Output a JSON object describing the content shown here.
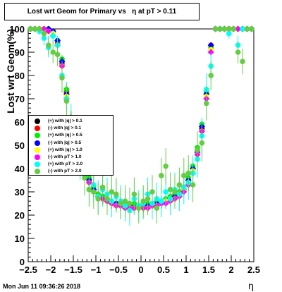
{
  "title": "Lost wrt Geom for Primary vs   η at pT > 0.11",
  "datestamp": "Mon Jun 11 09:36:26 2018",
  "chart_data": {
    "type": "scatter",
    "title": "Lost wrt Geom for Primary vs   η at pT > 0.11",
    "xlabel": "η",
    "ylabel": "Lost wrt Geom(%)",
    "xlim": [
      -2.5,
      2.5
    ],
    "ylim": [
      0,
      100
    ],
    "x_ticks": [
      "−2.5",
      "−2",
      "−1.5",
      "−1",
      "−0.5",
      "0",
      "0.5",
      "1",
      "1.5",
      "2",
      "2.5"
    ],
    "y_ticks": [
      "0",
      "10",
      "20",
      "30",
      "40",
      "50",
      "60",
      "70",
      "80",
      "90",
      "100"
    ],
    "grid": false,
    "legend_position": "left",
    "x": [
      -2.45,
      -2.35,
      -2.25,
      -2.15,
      -2.05,
      -1.95,
      -1.85,
      -1.75,
      -1.65,
      -1.55,
      -1.45,
      -1.35,
      -1.25,
      -1.15,
      -1.05,
      -0.95,
      -0.85,
      -0.75,
      -0.65,
      -0.55,
      -0.45,
      -0.35,
      -0.25,
      -0.15,
      -0.05,
      0.05,
      0.15,
      0.25,
      0.35,
      0.45,
      0.55,
      0.65,
      0.75,
      0.85,
      0.95,
      1.05,
      1.15,
      1.25,
      1.35,
      1.45,
      1.55,
      1.65,
      1.75,
      1.85,
      1.95,
      2.05,
      2.15,
      2.25,
      2.35,
      2.45
    ],
    "series": [
      {
        "name": "(+) with |q| > 0.1",
        "color": "#000000",
        "values": [
          100,
          100,
          100,
          100,
          100,
          99,
          95,
          86,
          73,
          62,
          54,
          47,
          40,
          35,
          31,
          28,
          27,
          26,
          25,
          25,
          24,
          24,
          24,
          24,
          24,
          24,
          24,
          24,
          25,
          25,
          26,
          27,
          28,
          29,
          31,
          35,
          40,
          48,
          57,
          72,
          92,
          100,
          100,
          100,
          100,
          100,
          100,
          100,
          100,
          100
        ]
      },
      {
        "name": "(-) with |q| > 0.1",
        "color": "#ff0000",
        "values": [
          100,
          100,
          100,
          100,
          100,
          99,
          94,
          85,
          73,
          61,
          53,
          46,
          39,
          34,
          30,
          28,
          27,
          26,
          25,
          24,
          24,
          24,
          23,
          23,
          23,
          23,
          24,
          24,
          25,
          25,
          26,
          27,
          28,
          29,
          31,
          34,
          39,
          47,
          58,
          73,
          93,
          100,
          100,
          100,
          100,
          100,
          100,
          100,
          100,
          100
        ]
      },
      {
        "name": "(+) with |q| > 0.5",
        "color": "#00ee00",
        "values": [
          100,
          100,
          100,
          100,
          100,
          98,
          95,
          87,
          74,
          62,
          54,
          47,
          41,
          36,
          32,
          29,
          28,
          27,
          26,
          25,
          25,
          25,
          24,
          25,
          24,
          24,
          25,
          25,
          26,
          26,
          27,
          28,
          29,
          30,
          32,
          36,
          41,
          49,
          59,
          73,
          92,
          100,
          100,
          100,
          100,
          100,
          100,
          100,
          100,
          100
        ]
      },
      {
        "name": "(-) with |q| > 0.5",
        "color": "#0000ff",
        "values": [
          100,
          100,
          100,
          100,
          100,
          99,
          95,
          86,
          72,
          61,
          53,
          46,
          40,
          35,
          31,
          28,
          27,
          26,
          25,
          25,
          24,
          24,
          24,
          23,
          23,
          24,
          24,
          24,
          25,
          25,
          26,
          27,
          28,
          29,
          31,
          35,
          40,
          47,
          58,
          72,
          93,
          100,
          100,
          100,
          100,
          100,
          100,
          100,
          100,
          100
        ]
      },
      {
        "name": "(+) with |q| > 1.0",
        "color": "#ffff00",
        "values": [
          100,
          100,
          100,
          100,
          99,
          98,
          93,
          84,
          71,
          60,
          52,
          45,
          39,
          34,
          30,
          28,
          27,
          26,
          25,
          24,
          24,
          23,
          23,
          23,
          23,
          23,
          23,
          24,
          24,
          25,
          26,
          27,
          27,
          29,
          31,
          34,
          39,
          46,
          56,
          71,
          91,
          100,
          100,
          100,
          100,
          100,
          100,
          100,
          100,
          100
        ]
      },
      {
        "name": "(-) with pT > 1.0",
        "color": "#ff00ff",
        "values": [
          100,
          100,
          100,
          100,
          99,
          97,
          93,
          84,
          70,
          59,
          52,
          45,
          38,
          34,
          30,
          28,
          27,
          26,
          25,
          24,
          24,
          23,
          23,
          23,
          23,
          23,
          23,
          24,
          24,
          25,
          25,
          26,
          27,
          28,
          30,
          33,
          38,
          46,
          56,
          70,
          90,
          100,
          100,
          100,
          100,
          100,
          100,
          100,
          100,
          100
        ]
      },
      {
        "name": "(+) with pT > 2.0",
        "color": "#00ffff",
        "values": [
          100,
          100,
          99,
          96,
          92,
          97,
          93,
          80,
          70,
          60,
          50,
          43,
          37,
          31,
          33,
          28,
          31,
          29,
          26,
          28,
          26,
          24,
          22,
          27,
          24,
          25,
          29,
          25,
          27,
          26,
          30,
          27,
          31,
          29,
          32,
          34,
          38,
          44,
          54,
          74,
          84,
          100,
          100,
          100,
          98,
          100,
          93,
          100,
          100,
          100
        ]
      },
      {
        "name": "(-) with pT > 2.0",
        "color": "#66cc44",
        "values": [
          100,
          100,
          100,
          98,
          93,
          90,
          89,
          79,
          69,
          57,
          53,
          44,
          36,
          31,
          30,
          27,
          32,
          27,
          30,
          29,
          25,
          26,
          25,
          29,
          23,
          26,
          27,
          30,
          23,
          37,
          41,
          31,
          30,
          33,
          37,
          38,
          33,
          48,
          51,
          68,
          80,
          100,
          100,
          100,
          100,
          100,
          90,
          86,
          100,
          100
        ]
      }
    ]
  }
}
